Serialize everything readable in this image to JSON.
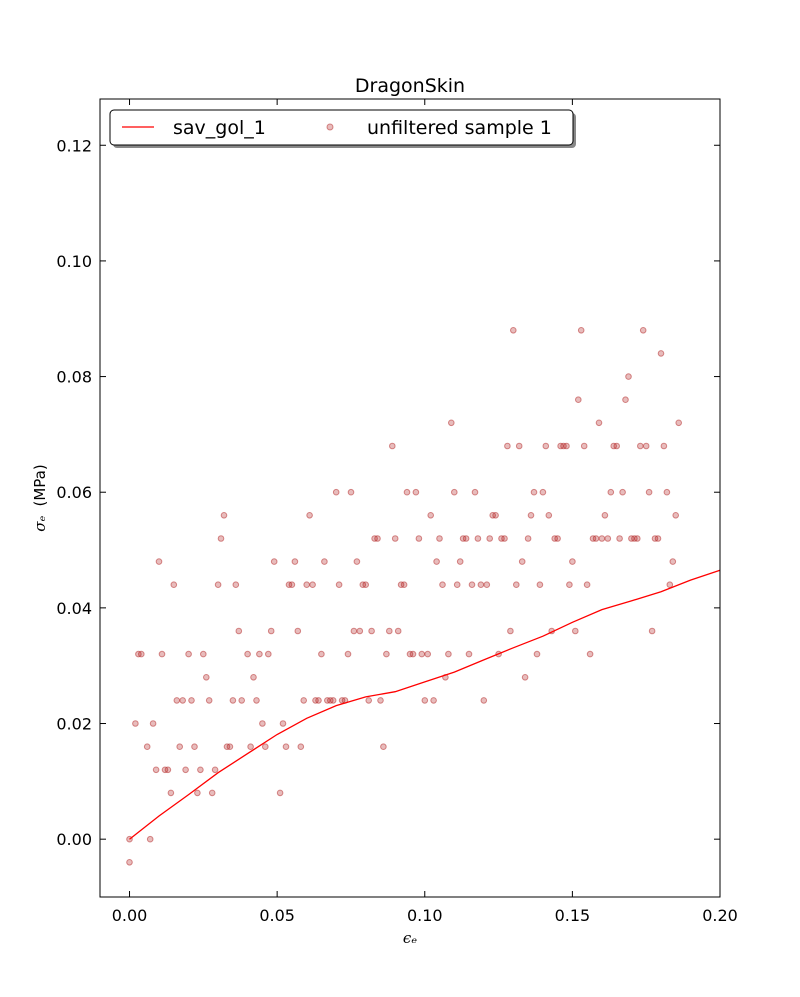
{
  "chart_data": {
    "type": "scatter",
    "title": "DragonSkin",
    "xlabel": "ϵₑ",
    "ylabel_symbol": "σₑ",
    "ylabel_unit": "(MPa)",
    "xlim": [
      -0.01,
      0.2
    ],
    "ylim": [
      -0.01,
      0.128
    ],
    "xticks": [
      0.0,
      0.05,
      0.1,
      0.15,
      0.2
    ],
    "xtick_labels": [
      "0.00",
      "0.05",
      "0.10",
      "0.15",
      "0.20"
    ],
    "yticks": [
      0.0,
      0.02,
      0.04,
      0.06,
      0.08,
      0.1,
      0.12
    ],
    "ytick_labels": [
      "0.00",
      "0.02",
      "0.04",
      "0.06",
      "0.08",
      "0.10",
      "0.12"
    ],
    "legend_position": "top-left",
    "series": [
      {
        "name": "sav_gol_1",
        "kind": "line",
        "color": "#ff0000",
        "x": [
          0.0,
          0.01,
          0.02,
          0.03,
          0.04,
          0.05,
          0.06,
          0.07,
          0.08,
          0.09,
          0.1,
          0.11,
          0.12,
          0.13,
          0.14,
          0.15,
          0.16,
          0.17,
          0.18,
          0.19,
          0.2
        ],
        "y": [
          0.0,
          0.004,
          0.0077,
          0.0115,
          0.0148,
          0.0181,
          0.0209,
          0.0231,
          0.0246,
          0.0255,
          0.0272,
          0.0289,
          0.031,
          0.0331,
          0.0351,
          0.0375,
          0.0397,
          0.0412,
          0.0428,
          0.0448,
          0.0465
        ]
      },
      {
        "name": "unfiltered sample 1",
        "kind": "scatter",
        "color": "#b22222",
        "alpha": 0.3,
        "points": [
          [
            0.0,
            0.0
          ],
          [
            0.0,
            -0.004
          ],
          [
            0.002,
            0.02
          ],
          [
            0.003,
            0.032
          ],
          [
            0.004,
            0.032
          ],
          [
            0.006,
            0.016
          ],
          [
            0.007,
            0.0
          ],
          [
            0.008,
            0.02
          ],
          [
            0.009,
            0.012
          ],
          [
            0.01,
            0.048
          ],
          [
            0.011,
            0.032
          ],
          [
            0.012,
            0.012
          ],
          [
            0.013,
            0.012
          ],
          [
            0.014,
            0.008
          ],
          [
            0.015,
            0.044
          ],
          [
            0.016,
            0.024
          ],
          [
            0.017,
            0.016
          ],
          [
            0.018,
            0.024
          ],
          [
            0.019,
            0.012
          ],
          [
            0.02,
            0.032
          ],
          [
            0.021,
            0.024
          ],
          [
            0.022,
            0.016
          ],
          [
            0.023,
            0.008
          ],
          [
            0.024,
            0.012
          ],
          [
            0.025,
            0.032
          ],
          [
            0.026,
            0.028
          ],
          [
            0.027,
            0.024
          ],
          [
            0.028,
            0.008
          ],
          [
            0.029,
            0.012
          ],
          [
            0.03,
            0.044
          ],
          [
            0.031,
            0.052
          ],
          [
            0.032,
            0.056
          ],
          [
            0.033,
            0.016
          ],
          [
            0.034,
            0.016
          ],
          [
            0.035,
            0.024
          ],
          [
            0.036,
            0.044
          ],
          [
            0.037,
            0.036
          ],
          [
            0.038,
            0.024
          ],
          [
            0.04,
            0.032
          ],
          [
            0.041,
            0.016
          ],
          [
            0.042,
            0.028
          ],
          [
            0.043,
            0.024
          ],
          [
            0.044,
            0.032
          ],
          [
            0.045,
            0.02
          ],
          [
            0.046,
            0.016
          ],
          [
            0.047,
            0.032
          ],
          [
            0.048,
            0.036
          ],
          [
            0.049,
            0.048
          ],
          [
            0.051,
            0.008
          ],
          [
            0.052,
            0.02
          ],
          [
            0.053,
            0.016
          ],
          [
            0.054,
            0.044
          ],
          [
            0.055,
            0.044
          ],
          [
            0.056,
            0.048
          ],
          [
            0.057,
            0.036
          ],
          [
            0.058,
            0.016
          ],
          [
            0.059,
            0.024
          ],
          [
            0.06,
            0.044
          ],
          [
            0.061,
            0.056
          ],
          [
            0.062,
            0.044
          ],
          [
            0.063,
            0.024
          ],
          [
            0.064,
            0.024
          ],
          [
            0.065,
            0.032
          ],
          [
            0.066,
            0.048
          ],
          [
            0.067,
            0.024
          ],
          [
            0.068,
            0.024
          ],
          [
            0.069,
            0.024
          ],
          [
            0.07,
            0.06
          ],
          [
            0.071,
            0.044
          ],
          [
            0.072,
            0.024
          ],
          [
            0.073,
            0.024
          ],
          [
            0.074,
            0.032
          ],
          [
            0.075,
            0.06
          ],
          [
            0.076,
            0.036
          ],
          [
            0.077,
            0.048
          ],
          [
            0.078,
            0.036
          ],
          [
            0.079,
            0.044
          ],
          [
            0.08,
            0.044
          ],
          [
            0.081,
            0.024
          ],
          [
            0.082,
            0.036
          ],
          [
            0.083,
            0.052
          ],
          [
            0.084,
            0.052
          ],
          [
            0.085,
            0.024
          ],
          [
            0.086,
            0.016
          ],
          [
            0.087,
            0.032
          ],
          [
            0.088,
            0.036
          ],
          [
            0.089,
            0.068
          ],
          [
            0.09,
            0.052
          ],
          [
            0.091,
            0.036
          ],
          [
            0.092,
            0.044
          ],
          [
            0.093,
            0.044
          ],
          [
            0.094,
            0.06
          ],
          [
            0.095,
            0.032
          ],
          [
            0.096,
            0.032
          ],
          [
            0.097,
            0.06
          ],
          [
            0.098,
            0.052
          ],
          [
            0.099,
            0.032
          ],
          [
            0.1,
            0.024
          ],
          [
            0.101,
            0.032
          ],
          [
            0.102,
            0.056
          ],
          [
            0.103,
            0.024
          ],
          [
            0.104,
            0.048
          ],
          [
            0.105,
            0.052
          ],
          [
            0.106,
            0.044
          ],
          [
            0.107,
            0.028
          ],
          [
            0.108,
            0.032
          ],
          [
            0.109,
            0.072
          ],
          [
            0.11,
            0.06
          ],
          [
            0.111,
            0.044
          ],
          [
            0.112,
            0.048
          ],
          [
            0.113,
            0.052
          ],
          [
            0.114,
            0.052
          ],
          [
            0.115,
            0.032
          ],
          [
            0.116,
            0.044
          ],
          [
            0.117,
            0.06
          ],
          [
            0.118,
            0.052
          ],
          [
            0.119,
            0.044
          ],
          [
            0.12,
            0.024
          ],
          [
            0.121,
            0.044
          ],
          [
            0.122,
            0.052
          ],
          [
            0.123,
            0.056
          ],
          [
            0.124,
            0.056
          ],
          [
            0.125,
            0.032
          ],
          [
            0.126,
            0.052
          ],
          [
            0.127,
            0.052
          ],
          [
            0.128,
            0.068
          ],
          [
            0.129,
            0.036
          ],
          [
            0.13,
            0.088
          ],
          [
            0.131,
            0.044
          ],
          [
            0.132,
            0.068
          ],
          [
            0.133,
            0.048
          ],
          [
            0.134,
            0.028
          ],
          [
            0.135,
            0.052
          ],
          [
            0.136,
            0.056
          ],
          [
            0.137,
            0.06
          ],
          [
            0.138,
            0.032
          ],
          [
            0.139,
            0.044
          ],
          [
            0.14,
            0.06
          ],
          [
            0.141,
            0.068
          ],
          [
            0.142,
            0.056
          ],
          [
            0.143,
            0.036
          ],
          [
            0.144,
            0.052
          ],
          [
            0.145,
            0.052
          ],
          [
            0.146,
            0.068
          ],
          [
            0.147,
            0.068
          ],
          [
            0.148,
            0.068
          ],
          [
            0.149,
            0.044
          ],
          [
            0.15,
            0.048
          ],
          [
            0.151,
            0.036
          ],
          [
            0.152,
            0.076
          ],
          [
            0.153,
            0.088
          ],
          [
            0.154,
            0.068
          ],
          [
            0.155,
            0.044
          ],
          [
            0.156,
            0.032
          ],
          [
            0.157,
            0.052
          ],
          [
            0.158,
            0.052
          ],
          [
            0.159,
            0.072
          ],
          [
            0.16,
            0.052
          ],
          [
            0.161,
            0.056
          ],
          [
            0.162,
            0.052
          ],
          [
            0.163,
            0.06
          ],
          [
            0.164,
            0.068
          ],
          [
            0.165,
            0.068
          ],
          [
            0.166,
            0.052
          ],
          [
            0.167,
            0.06
          ],
          [
            0.168,
            0.076
          ],
          [
            0.169,
            0.08
          ],
          [
            0.17,
            0.052
          ],
          [
            0.171,
            0.052
          ],
          [
            0.172,
            0.052
          ],
          [
            0.173,
            0.068
          ],
          [
            0.174,
            0.088
          ],
          [
            0.175,
            0.068
          ],
          [
            0.176,
            0.06
          ],
          [
            0.177,
            0.036
          ],
          [
            0.178,
            0.052
          ],
          [
            0.179,
            0.052
          ],
          [
            0.18,
            0.084
          ],
          [
            0.181,
            0.068
          ],
          [
            0.182,
            0.06
          ],
          [
            0.183,
            0.044
          ],
          [
            0.184,
            0.048
          ],
          [
            0.185,
            0.056
          ],
          [
            0.186,
            0.072
          ]
        ]
      }
    ]
  }
}
